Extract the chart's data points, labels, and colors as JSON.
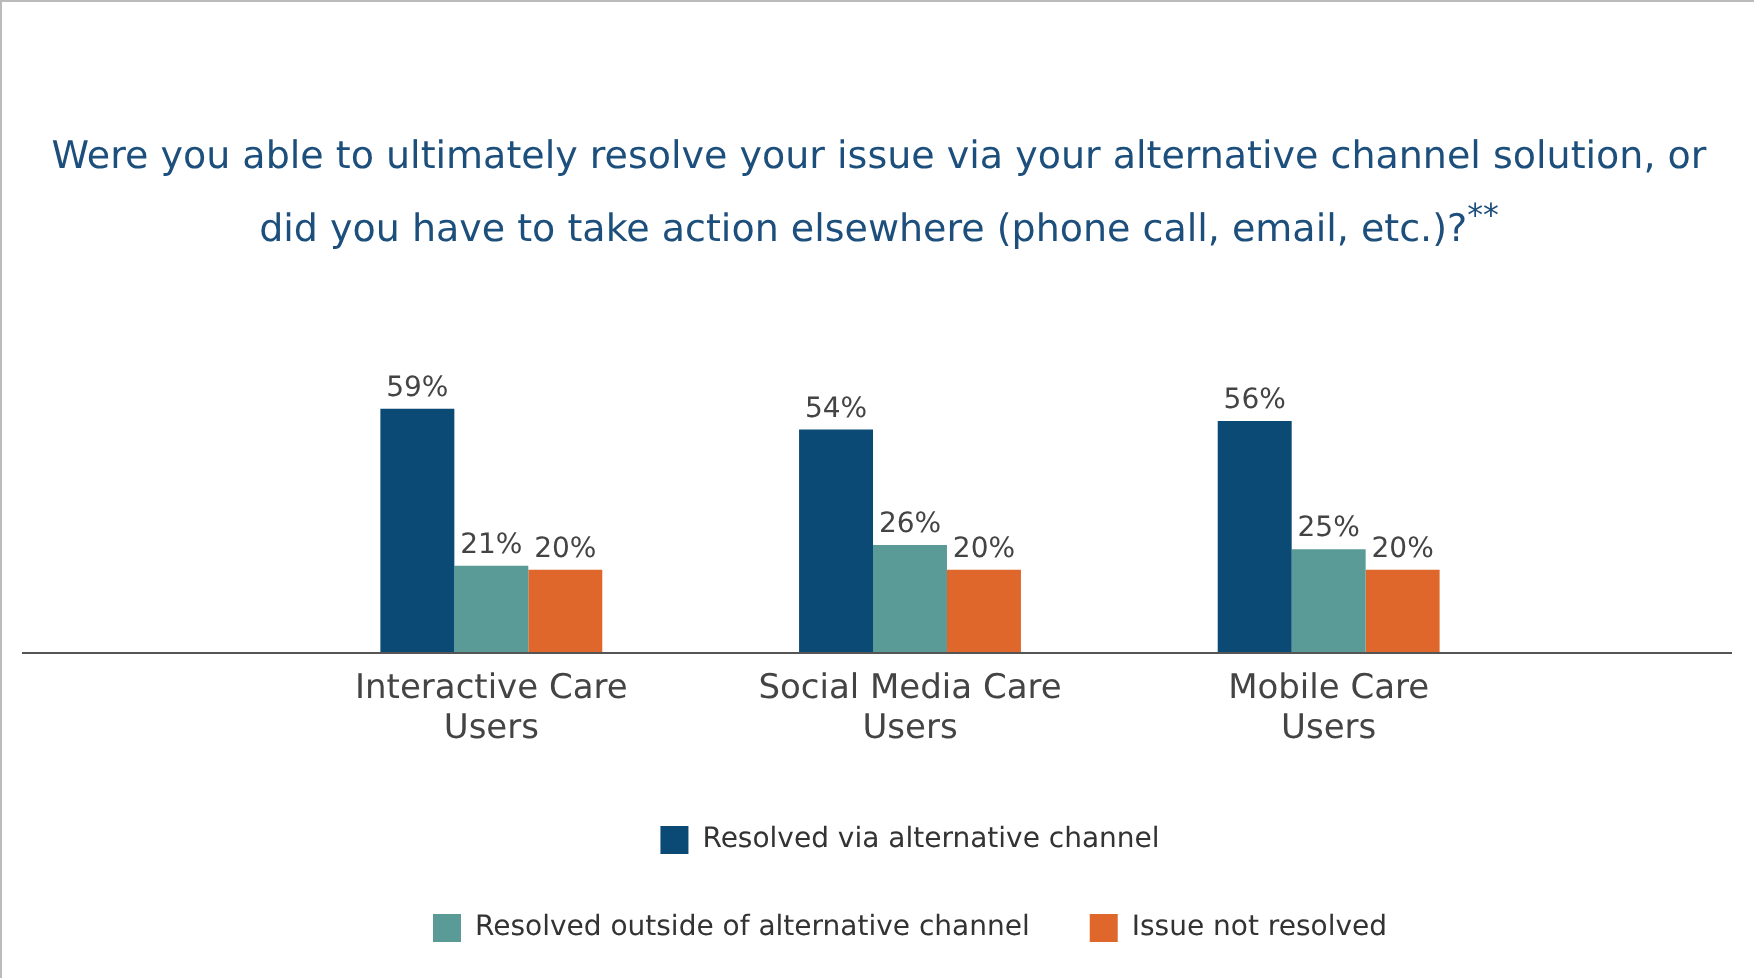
{
  "chart_data": {
    "type": "bar",
    "title": "Were you able to ultimately resolve your issue via your alternative channel solution, or did you have to take action elsewhere (phone call, email, etc.)?$^{**}$",
    "categories": [
      "Interactive Care Users",
      "Social Media Care Users",
      "Mobile Care Users"
    ],
    "series": [
      {
        "name": "Resolved via alternative channel",
        "color": "#0b4a75",
        "values": [
          59,
          54,
          56
        ],
        "value_labels": [
          "59%",
          "54%",
          "56%"
        ]
      },
      {
        "name": "Resolved outside of alternative channel",
        "color": "#5a9b98",
        "values": [
          21,
          26,
          25
        ],
        "value_labels": [
          "21%",
          "26%",
          "25%"
        ]
      },
      {
        "name": "Issue not resolved",
        "color": "#e0672b",
        "values": [
          20,
          20,
          20
        ],
        "value_labels": [
          "20%",
          "20%",
          "20%"
        ]
      }
    ],
    "legend": "bottom",
    "grid": false,
    "tick_labels": "x"
  }
}
